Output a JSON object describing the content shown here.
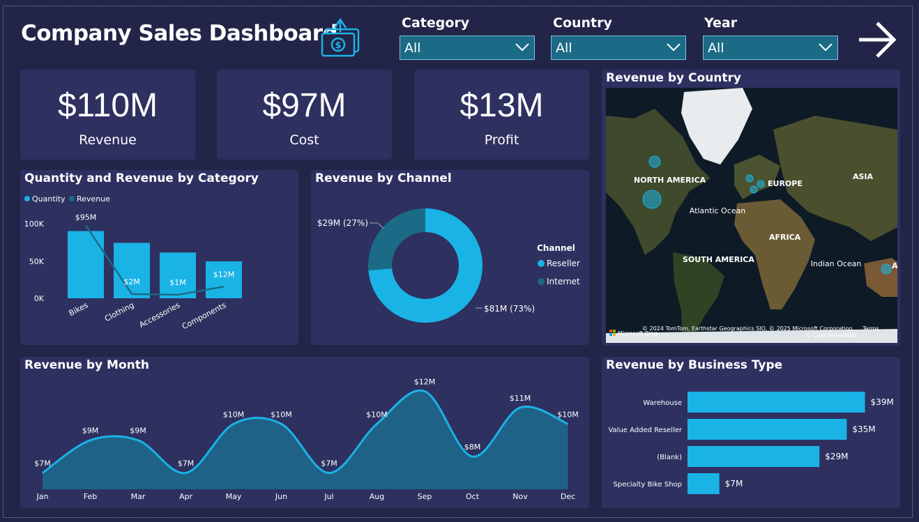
{
  "header": {
    "title": "Company Sales Dashboard",
    "filters": [
      {
        "label": "Category",
        "value": "All"
      },
      {
        "label": "Country",
        "value": "All"
      },
      {
        "label": "Year",
        "value": "All"
      }
    ]
  },
  "kpis": [
    {
      "value": "$110M",
      "label": "Revenue"
    },
    {
      "value": "$97M",
      "label": "Cost"
    },
    {
      "value": "$13M",
      "label": "Profit"
    }
  ],
  "colors": {
    "accent": "#1ab3e6",
    "dark_series": "#1b6b87",
    "background": "#222448",
    "card": "#2e3060"
  },
  "map": {
    "title": "Revenue by Country",
    "labels": {
      "north_america": "NORTH AMERICA",
      "europe": "EUROPE",
      "asia": "ASIA",
      "atlantic": "Atlantic Ocean",
      "africa": "AFRICA",
      "south_america": "SOUTH AMERICA",
      "indian": "Indian Ocean",
      "aus": "AUS"
    },
    "logo_text": "Microsoft Bing",
    "attribution": "© 2024 TomTom, Earthstar Geographics SIO, © 2025 Microsoft Corporation",
    "terms": "Terms",
    "osm": "© OpenStreetMap"
  },
  "chart_data": [
    {
      "id": "category",
      "type": "bar",
      "title": "Quantity and Revenue by Category",
      "categories": [
        "Bikes",
        "Clothing",
        "Accessories",
        "Components"
      ],
      "series": [
        {
          "name": "Quantity",
          "type": "bar",
          "values": [
            91000,
            75000,
            62000,
            50000
          ]
        },
        {
          "name": "Revenue",
          "type": "line",
          "values": [
            95,
            2,
            1,
            12
          ],
          "labels": [
            "$95M",
            "$2M",
            "$1M",
            "$12M"
          ]
        }
      ],
      "y_ticks": [
        "100K",
        "50K",
        "0K"
      ],
      "ylim": [
        0,
        100000
      ]
    },
    {
      "id": "channel",
      "type": "pie",
      "title": "Revenue by Channel",
      "legend_title": "Channel",
      "slices": [
        {
          "name": "Reseller",
          "value": 81,
          "label": "$81M (73%)"
        },
        {
          "name": "Internet",
          "value": 29,
          "label": "$29M (27%)"
        }
      ]
    },
    {
      "id": "month",
      "type": "area",
      "title": "Revenue by Month",
      "x": [
        "Jan",
        "Feb",
        "Mar",
        "Apr",
        "May",
        "Jun",
        "Jul",
        "Aug",
        "Sep",
        "Oct",
        "Nov",
        "Dec"
      ],
      "values": [
        7,
        9,
        9,
        7,
        10,
        10,
        7,
        10,
        12,
        8,
        11,
        10
      ],
      "labels": [
        "$7M",
        "$9M",
        "$9M",
        "$7M",
        "$10M",
        "$10M",
        "$7M",
        "$10M",
        "$12M",
        "$8M",
        "$11M",
        "$10M"
      ]
    },
    {
      "id": "business",
      "type": "bar",
      "orientation": "horizontal",
      "title": "Revenue by Business Type",
      "categories": [
        "Warehouse",
        "Value Added Reseller",
        "(Blank)",
        "Specialty Bike Shop"
      ],
      "values": [
        39,
        35,
        29,
        7
      ],
      "labels": [
        "$39M",
        "$35M",
        "$29M",
        "$7M"
      ],
      "xlim": [
        0,
        40
      ]
    }
  ]
}
